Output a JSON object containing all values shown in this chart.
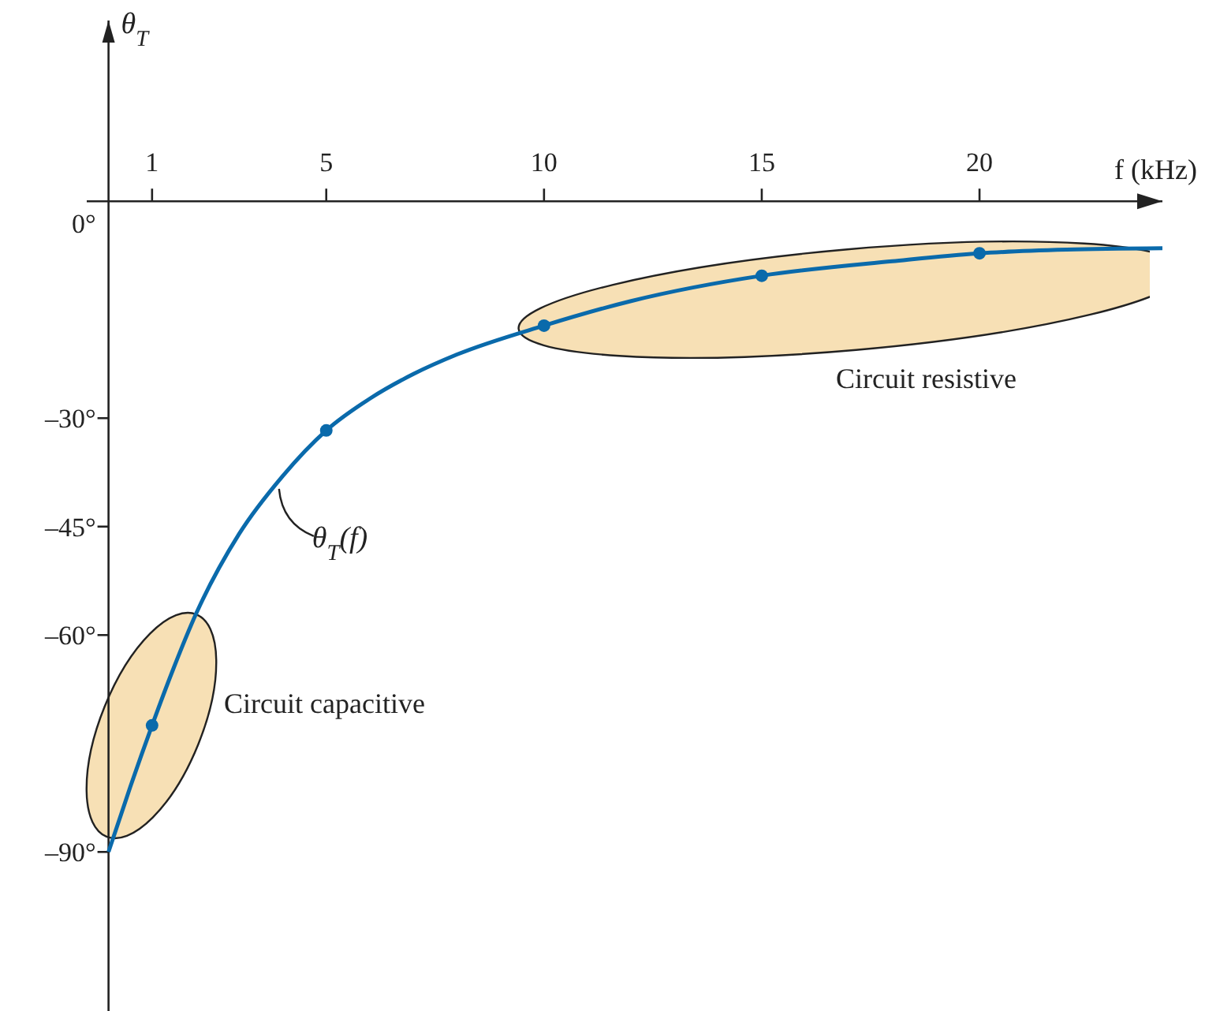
{
  "chart_data": {
    "type": "line",
    "xlabel": "f (kHz)",
    "ylabel": "θ$_{T}$",
    "xlim": [
      -0.5,
      24.2
    ],
    "ylim": [
      -112,
      25
    ],
    "xticks": [
      1,
      5,
      10,
      15,
      20
    ],
    "yticks": [
      {
        "value": 0,
        "label": "0°"
      },
      {
        "value": -30,
        "label": "–30°"
      },
      {
        "value": -45,
        "label": "–45°"
      },
      {
        "value": -60,
        "label": "–60°"
      },
      {
        "value": -90,
        "label": "–90°"
      }
    ],
    "series": [
      {
        "name": "θ$_{T}$(f)",
        "color": "#0a6aab",
        "marker": "none",
        "x": [
          0,
          0.5,
          1,
          1.5,
          2,
          3,
          4,
          5,
          6,
          7,
          8,
          10,
          12,
          15,
          18,
          20,
          22,
          24.2
        ],
        "values": [
          -90,
          -81,
          -72.5,
          -64.5,
          -57.2,
          -46,
          -38,
          -31.7,
          -27.3,
          -23.9,
          -21.2,
          -17.2,
          -13.8,
          -10.3,
          -8.3,
          -7.2,
          -6.7,
          -6.5
        ]
      },
      {
        "type": "scatter",
        "color": "#0a6aab",
        "marker": "circle",
        "x": [
          1,
          5,
          10,
          15,
          20
        ],
        "values": [
          -72.5,
          -31.7,
          -17.2,
          -10.3,
          -7.2
        ]
      }
    ],
    "annotations": [
      "Circuit capacitive",
      "Circuit resistive"
    ]
  }
}
